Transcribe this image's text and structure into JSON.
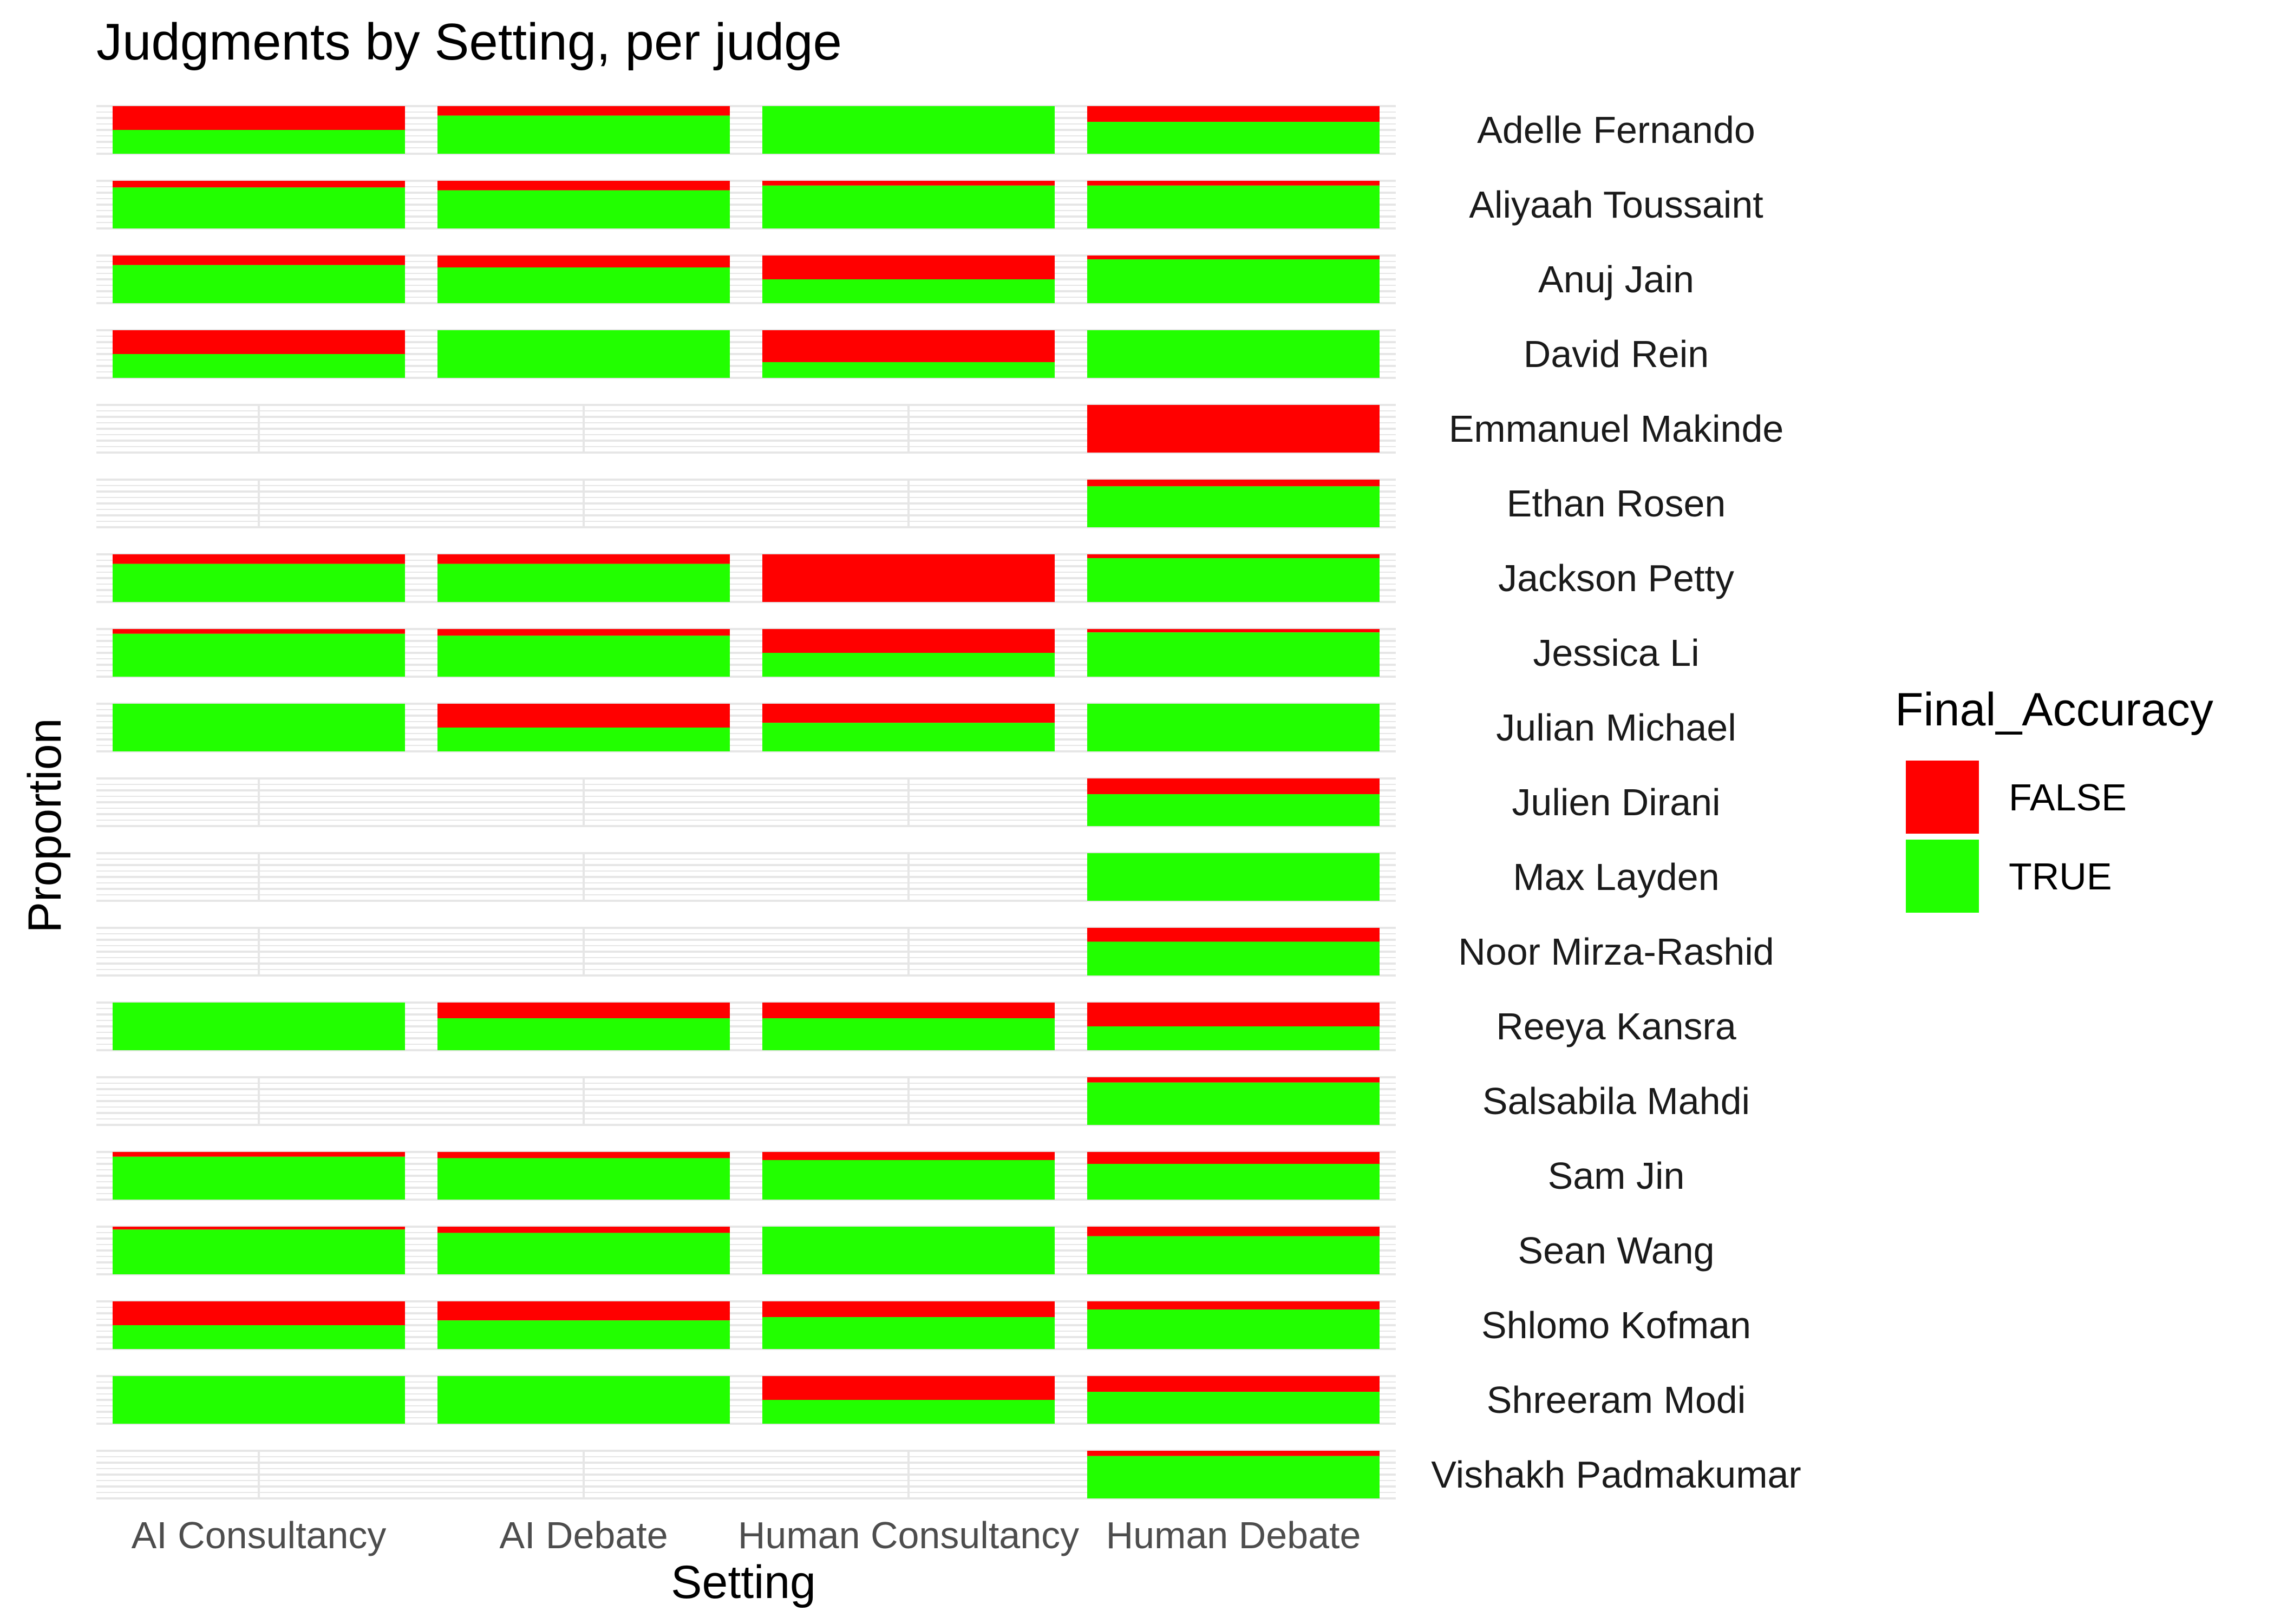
{
  "chart_data": {
    "type": "bar",
    "stacked": true,
    "faceted_by": "judge",
    "title": "Judgments by Setting, per judge",
    "xlabel": "Setting",
    "ylabel": "Proportion",
    "ylim": [
      0,
      1
    ],
    "categories": [
      "AI Consultancy",
      "AI Debate",
      "Human Consultancy",
      "Human Debate"
    ],
    "legend": {
      "title": "Final_Accuracy",
      "position": "right",
      "entries": [
        {
          "label": "FALSE",
          "color": "#ff0000"
        },
        {
          "label": "TRUE",
          "color": "#22ff00"
        }
      ]
    },
    "grid": true,
    "facets": [
      {
        "judge": "Adelle Fernando",
        "false_share": [
          0.5,
          0.2,
          0.0,
          0.33
        ]
      },
      {
        "judge": "Aliyaah Toussaint",
        "false_share": [
          0.14,
          0.2,
          0.1,
          0.1
        ]
      },
      {
        "judge": "Anuj Jain",
        "false_share": [
          0.2,
          0.25,
          0.5,
          0.08
        ]
      },
      {
        "judge": "David Rein",
        "false_share": [
          0.5,
          0.0,
          0.67,
          0.0
        ]
      },
      {
        "judge": "Emmanuel Makinde",
        "false_share": [
          null,
          null,
          null,
          1.0
        ]
      },
      {
        "judge": "Ethan Rosen",
        "false_share": [
          null,
          null,
          null,
          0.14
        ]
      },
      {
        "judge": "Jackson Petty",
        "false_share": [
          0.2,
          0.2,
          1.0,
          0.08
        ]
      },
      {
        "judge": "Jessica Li",
        "false_share": [
          0.1,
          0.14,
          0.5,
          0.07
        ]
      },
      {
        "judge": "Julian Michael",
        "false_share": [
          0.0,
          0.5,
          0.4,
          0.0
        ]
      },
      {
        "judge": "Julien Dirani",
        "false_share": [
          null,
          null,
          null,
          0.33
        ]
      },
      {
        "judge": "Max Layden",
        "false_share": [
          null,
          null,
          null,
          0.0
        ]
      },
      {
        "judge": "Noor Mirza-Rashid",
        "false_share": [
          null,
          null,
          null,
          0.29
        ]
      },
      {
        "judge": "Reeya Kansra",
        "false_share": [
          0.0,
          0.33,
          0.33,
          0.5
        ]
      },
      {
        "judge": "Salsabila Mahdi",
        "false_share": [
          null,
          null,
          null,
          0.11
        ]
      },
      {
        "judge": "Sam Jin",
        "false_share": [
          0.1,
          0.13,
          0.17,
          0.25
        ]
      },
      {
        "judge": "Sean Wang",
        "false_share": [
          0.06,
          0.13,
          0.0,
          0.2
        ]
      },
      {
        "judge": "Shlomo Kofman",
        "false_share": [
          0.5,
          0.4,
          0.33,
          0.17
        ]
      },
      {
        "judge": "Shreeram Modi",
        "false_share": [
          0.0,
          0.0,
          0.5,
          0.33
        ]
      },
      {
        "judge": "Vishakh Padmakumar",
        "false_share": [
          null,
          null,
          null,
          0.11
        ]
      }
    ]
  }
}
